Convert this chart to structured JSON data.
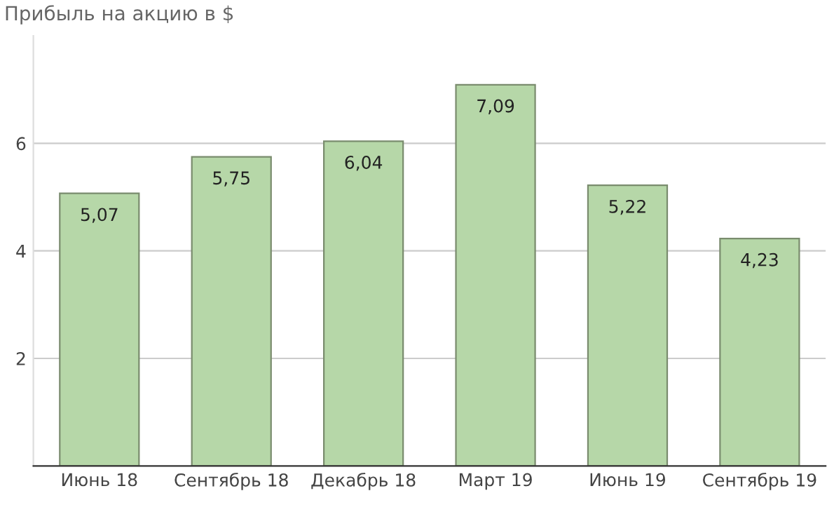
{
  "chart_data": {
    "type": "bar",
    "title": "Прибыль на акцию в $",
    "categories": [
      "Июнь 18",
      "Сентябрь 18",
      "Декабрь 18",
      "Март 19",
      "Июнь 19",
      "Сентябрь 19"
    ],
    "values": [
      5.07,
      5.75,
      6.04,
      7.09,
      5.22,
      4.23
    ],
    "value_labels": [
      "5,07",
      "5,75",
      "6,04",
      "7,09",
      "5,22",
      "4,23"
    ],
    "color": "#b6d7a8",
    "ylim": [
      0,
      8
    ],
    "yticks": [
      2,
      4,
      6
    ],
    "grid": "y"
  }
}
